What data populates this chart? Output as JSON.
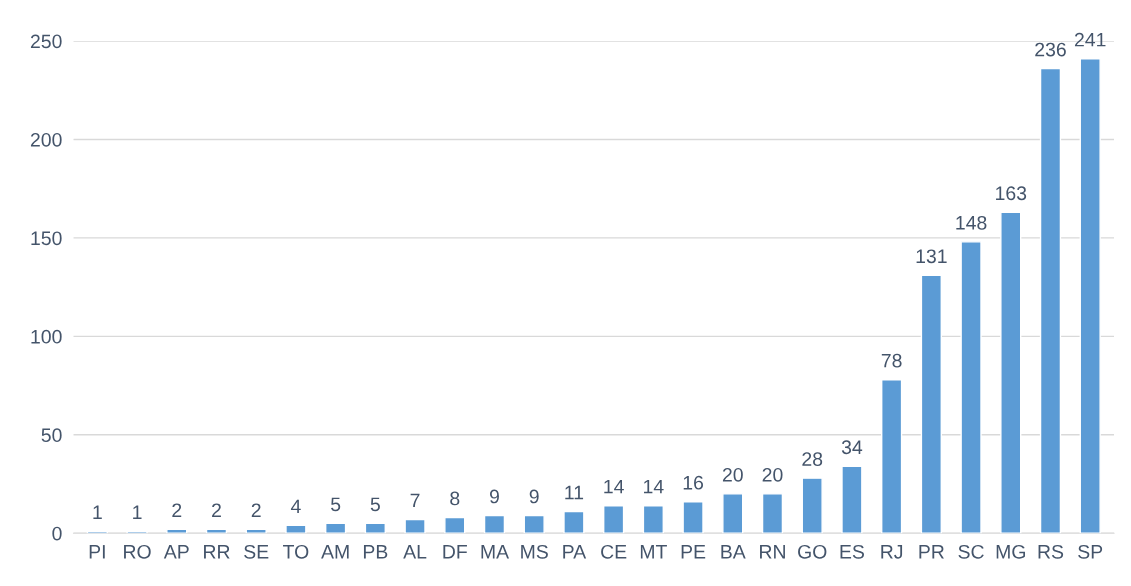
{
  "chart_data": {
    "type": "bar",
    "categories": [
      "PI",
      "RO",
      "AP",
      "RR",
      "SE",
      "TO",
      "AM",
      "PB",
      "AL",
      "DF",
      "MA",
      "MS",
      "PA",
      "CE",
      "MT",
      "PE",
      "BA",
      "RN",
      "GO",
      "ES",
      "RJ",
      "PR",
      "SC",
      "MG",
      "RS",
      "SP"
    ],
    "values": [
      1,
      1,
      2,
      2,
      2,
      4,
      5,
      5,
      7,
      8,
      9,
      9,
      11,
      14,
      14,
      16,
      20,
      20,
      28,
      34,
      78,
      131,
      148,
      163,
      236,
      241
    ],
    "color": "#5b9bd5",
    "ylim": [
      0,
      250
    ],
    "yticks": [
      0,
      50,
      100,
      150,
      200,
      250
    ],
    "grid": "y",
    "data_labels": true
  }
}
